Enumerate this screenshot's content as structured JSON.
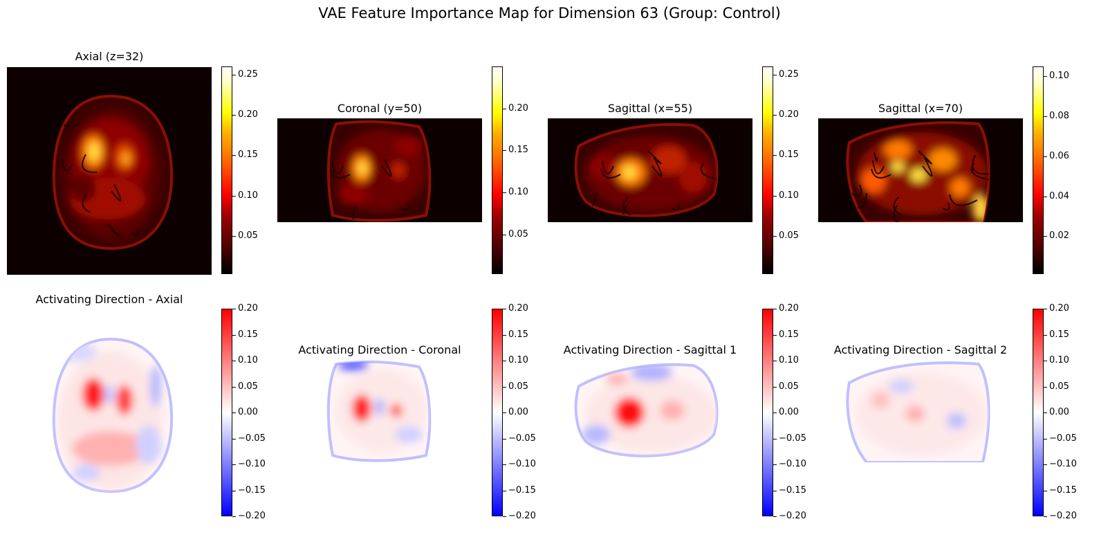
{
  "figure": {
    "title": "VAE Feature Importance Map for Dimension 63 (Group: Control)"
  },
  "rows": [
    {
      "name": "importance",
      "colormap": "hot",
      "panels": [
        {
          "title": "Axial (z=32)",
          "view": "axial",
          "colorbar": {
            "ticks": [
              "0.25",
              "0.20",
              "0.15",
              "0.10",
              "0.05"
            ],
            "range": [
              0.003,
              0.26
            ]
          }
        },
        {
          "title": "Coronal (y=50)",
          "view": "coronal",
          "colorbar": {
            "ticks": [
              "0.20",
              "0.15",
              "0.10",
              "0.05"
            ],
            "range": [
              0.003,
              0.25
            ]
          }
        },
        {
          "title": "Sagittal (x=55)",
          "view": "sagittal1",
          "colorbar": {
            "ticks": [
              "0.25",
              "0.20",
              "0.15",
              "0.10",
              "0.05"
            ],
            "range": [
              0.003,
              0.26
            ]
          }
        },
        {
          "title": "Sagittal (x=70)",
          "view": "sagittal2",
          "colorbar": {
            "ticks": [
              "0.10",
              "0.08",
              "0.06",
              "0.04",
              "0.02"
            ],
            "range": [
              0.001,
              0.105
            ]
          }
        }
      ]
    },
    {
      "name": "activating-direction",
      "colormap": "bwr",
      "panels": [
        {
          "title": "Activating Direction - Axial",
          "view": "axial",
          "colorbar": {
            "ticks": [
              "0.20",
              "0.15",
              "0.10",
              "0.05",
              "0.00",
              "−0.05",
              "−0.10",
              "−0.15",
              "−0.20"
            ],
            "range": [
              -0.2,
              0.2
            ]
          }
        },
        {
          "title": "Activating Direction - Coronal",
          "view": "coronal",
          "colorbar": {
            "ticks": [
              "0.20",
              "0.15",
              "0.10",
              "0.05",
              "0.00",
              "−0.05",
              "−0.10",
              "−0.15",
              "−0.20"
            ],
            "range": [
              -0.2,
              0.2
            ]
          }
        },
        {
          "title": "Activating Direction - Sagittal 1",
          "view": "sagittal1",
          "colorbar": {
            "ticks": [
              "0.20",
              "0.15",
              "0.10",
              "0.05",
              "0.00",
              "−0.05",
              "−0.10",
              "−0.15",
              "−0.20"
            ],
            "range": [
              -0.2,
              0.2
            ]
          }
        },
        {
          "title": "Activating Direction - Sagittal 2",
          "view": "sagittal2",
          "colorbar": {
            "ticks": [
              "0.20",
              "0.15",
              "0.10",
              "0.05",
              "0.00",
              "−0.05",
              "−0.10",
              "−0.15",
              "−0.20"
            ],
            "range": [
              -0.2,
              0.2
            ]
          }
        }
      ]
    }
  ]
}
